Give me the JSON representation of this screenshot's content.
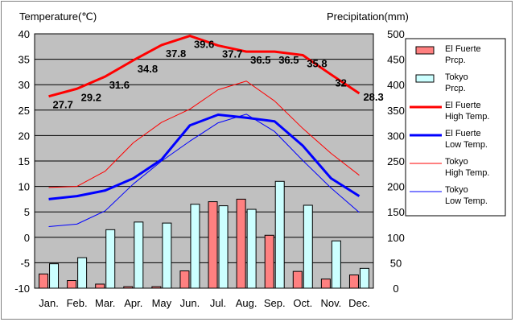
{
  "chart_data": {
    "type": "bar+line",
    "y_left_label": "Temperature(℃)",
    "y_right_label": "Precipitation(mm)",
    "y_left_range": [
      -10,
      40
    ],
    "y_right_range": [
      0,
      500
    ],
    "y_left_ticks": [
      "40",
      "35",
      "30",
      "25",
      "20",
      "15",
      "10",
      "5",
      "0",
      "-5",
      "-10"
    ],
    "y_right_ticks": [
      "500",
      "450",
      "400",
      "350",
      "300",
      "250",
      "200",
      "150",
      "100",
      "50",
      "0"
    ],
    "categories": [
      "Jan.",
      "Feb.",
      "Mar.",
      "Apr.",
      "May",
      "Jun.",
      "Jul.",
      "Aug.",
      "Sep.",
      "Oct.",
      "Nov.",
      "Dec."
    ],
    "grid": true,
    "legend_position": "right",
    "bars": [
      {
        "name": "El Fuerte Prcp.",
        "color": "#ff8080",
        "values": [
          28,
          15,
          8,
          3,
          3,
          34,
          170,
          175,
          104,
          33,
          18,
          26
        ]
      },
      {
        "name": "Tokyo Prcp.",
        "color": "#ccffff",
        "values": [
          48,
          60,
          115,
          130,
          128,
          165,
          162,
          155,
          210,
          163,
          93,
          39
        ]
      }
    ],
    "lines": [
      {
        "name": "El Fuerte High Temp.",
        "color": "#ff0000",
        "width": 3,
        "values": [
          27.7,
          29.2,
          31.6,
          34.8,
          37.8,
          39.6,
          37.7,
          36.5,
          36.5,
          35.8,
          32,
          28.3
        ],
        "labels": [
          "27.7",
          "29.2",
          "31.6",
          "34.8",
          "37.8",
          "39.6",
          "37.7",
          "36.5",
          "36.5",
          "35.8",
          "32",
          "28.3"
        ]
      },
      {
        "name": "El Fuerte Low Temp.",
        "color": "#0000ff",
        "width": 3,
        "values": [
          7.5,
          8.1,
          9.2,
          11.6,
          15.3,
          22.0,
          24.1,
          23.5,
          22.8,
          18.0,
          11.6,
          8.1
        ]
      },
      {
        "name": "Tokyo High Temp.",
        "color": "#ff0000",
        "width": 1,
        "values": [
          9.8,
          10.0,
          13.0,
          18.6,
          22.6,
          25.2,
          29.0,
          30.7,
          26.8,
          21.4,
          16.5,
          12.2
        ]
      },
      {
        "name": "Tokyo Low Temp.",
        "color": "#0000ff",
        "width": 1,
        "values": [
          2.1,
          2.6,
          5.2,
          10.5,
          15.0,
          18.9,
          22.5,
          24.2,
          20.8,
          15.1,
          9.7,
          4.9
        ]
      }
    ],
    "legend": [
      {
        "line1": "El Fuerte",
        "line2": "Prcp.",
        "kind": "bar",
        "color": "#ff8080"
      },
      {
        "line1": "Tokyo",
        "line2": "Prcp.",
        "kind": "bar",
        "color": "#ccffff"
      },
      {
        "line1": "El Fuerte",
        "line2": "High Temp.",
        "kind": "line",
        "color": "#ff0000",
        "width": 3
      },
      {
        "line1": "El Fuerte",
        "line2": "Low Temp.",
        "kind": "line",
        "color": "#0000ff",
        "width": 3
      },
      {
        "line1": "Tokyo",
        "line2": "High Temp.",
        "kind": "line",
        "color": "#ff0000",
        "width": 1
      },
      {
        "line1": "Tokyo",
        "line2": "Low Temp.",
        "kind": "line",
        "color": "#0000ff",
        "width": 1
      }
    ],
    "colors": {
      "plot_bg": "#c0c0c0",
      "bar_outline": "#000000"
    }
  }
}
